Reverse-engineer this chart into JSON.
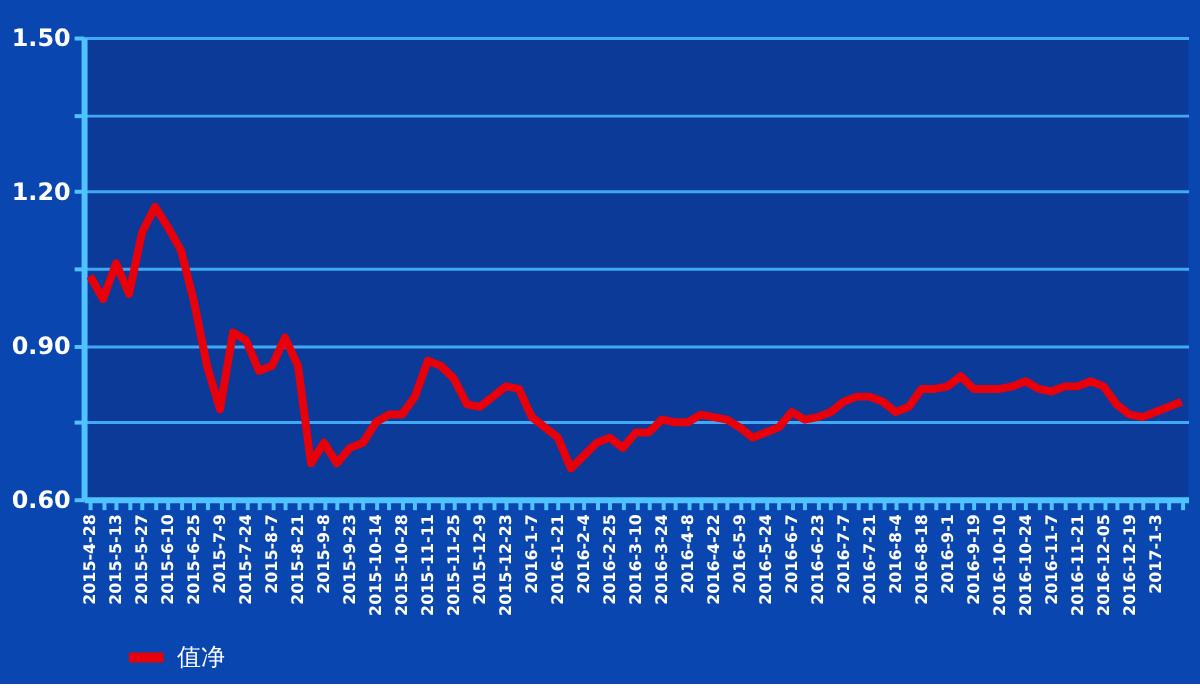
{
  "chart_data": {
    "type": "line",
    "categories": [
      "2015-4-28",
      null,
      "2015-5-13",
      null,
      "2015-5-27",
      null,
      "2015-6-10",
      null,
      "2015-6-25",
      null,
      "2015-7-9",
      null,
      "2015-7-24",
      null,
      "2015-8-7",
      null,
      "2015-8-21",
      null,
      "2015-9-8",
      null,
      "2015-9-23",
      null,
      "2015-10-14",
      null,
      "2015-10-28",
      null,
      "2015-11-11",
      null,
      "2015-11-25",
      null,
      "2015-12-9",
      null,
      "2015-12-23",
      null,
      "2016-1-7",
      null,
      "2016-1-21",
      null,
      "2016-2-4",
      null,
      "2016-2-25",
      null,
      "2016-3-10",
      null,
      "2016-3-24",
      null,
      "2016-4-8",
      null,
      "2016-4-22",
      null,
      "2016-5-9",
      null,
      "2016-5-24",
      null,
      "2016-6-7",
      null,
      "2016-6-23",
      null,
      "2016-7-7",
      null,
      "2016-7-21",
      null,
      "2016-8-4",
      null,
      "2016-8-18",
      null,
      "2016-9-1",
      null,
      "2016-9-19",
      null,
      "2016-10-10",
      null,
      "2016-10-24",
      null,
      "2016-11-7",
      null,
      "2016-11-21",
      null,
      "2016-12-05",
      null,
      "2016-12-19",
      null,
      "2017-1-3",
      null,
      null
    ],
    "series": [
      {
        "name": "值净",
        "color": "#e8000b",
        "values": [
          1.035,
          0.99,
          1.06,
          1.0,
          1.12,
          1.17,
          1.13,
          1.085,
          0.985,
          0.86,
          0.775,
          0.925,
          0.91,
          0.85,
          0.86,
          0.915,
          0.86,
          0.67,
          0.71,
          0.67,
          0.7,
          0.71,
          0.75,
          0.765,
          0.765,
          0.8,
          0.87,
          0.86,
          0.835,
          0.785,
          0.78,
          0.8,
          0.82,
          0.815,
          0.76,
          0.74,
          0.72,
          0.66,
          0.685,
          0.71,
          0.72,
          0.7,
          0.73,
          0.73,
          0.755,
          0.75,
          0.75,
          0.765,
          0.76,
          0.755,
          0.74,
          0.72,
          0.73,
          0.74,
          0.77,
          0.755,
          0.76,
          0.77,
          0.79,
          0.8,
          0.8,
          0.79,
          0.77,
          0.78,
          0.815,
          0.815,
          0.82,
          0.84,
          0.815,
          0.815,
          0.815,
          0.82,
          0.83,
          0.815,
          0.81,
          0.82,
          0.82,
          0.83,
          0.82,
          0.785,
          0.765,
          0.76,
          0.77,
          0.78,
          0.79
        ]
      }
    ],
    "ylim": [
      0.6,
      1.5
    ],
    "yticks": [
      {
        "value": 0.6,
        "label": "0.60"
      },
      {
        "value": 0.75,
        "label": null
      },
      {
        "value": 0.9,
        "label": "0.90"
      },
      {
        "value": 1.05,
        "label": null
      },
      {
        "value": 1.2,
        "label": "1.20"
      },
      {
        "value": 1.35,
        "label": null
      },
      {
        "value": 1.5,
        "label": "1.50"
      }
    ],
    "grid": "y",
    "legend": "bottom left",
    "marker": "none",
    "line_style": "solid"
  }
}
